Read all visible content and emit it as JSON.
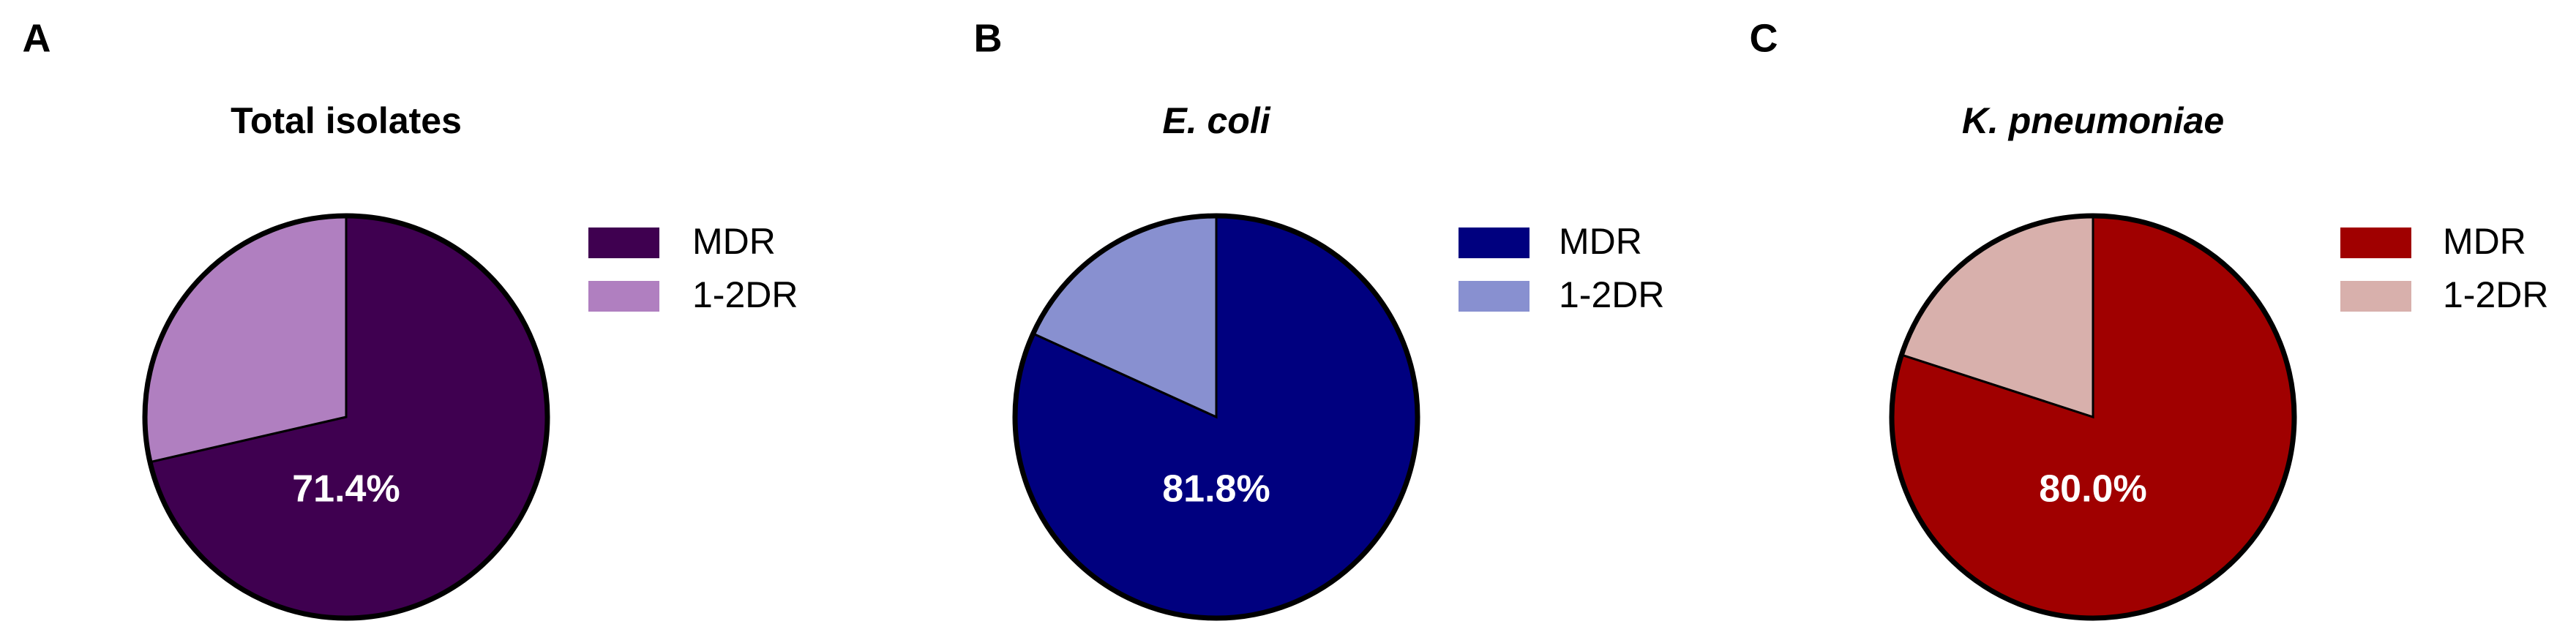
{
  "chart_data": [
    {
      "type": "pie",
      "panel": "A",
      "title": "Total isolates",
      "categories": [
        "MDR",
        "1-2DR"
      ],
      "values": [
        71.4,
        28.6
      ],
      "value_labels": [
        "71.4%",
        null
      ],
      "colors": [
        "#3f0050",
        "#b07fc0"
      ]
    },
    {
      "type": "pie",
      "panel": "B",
      "title": "E. coli",
      "categories": [
        "MDR",
        "1-2DR"
      ],
      "values": [
        81.8,
        18.2
      ],
      "value_labels": [
        "81.8%",
        null
      ],
      "colors": [
        "#00007f",
        "#8890d0"
      ]
    },
    {
      "type": "pie",
      "panel": "C",
      "title": "K. pneumoniae",
      "categories": [
        "MDR",
        "1-2DR"
      ],
      "values": [
        80.0,
        20.0
      ],
      "value_labels": [
        "80.0%",
        null
      ],
      "colors": [
        "#a00000",
        "#d8b0ac"
      ]
    }
  ]
}
